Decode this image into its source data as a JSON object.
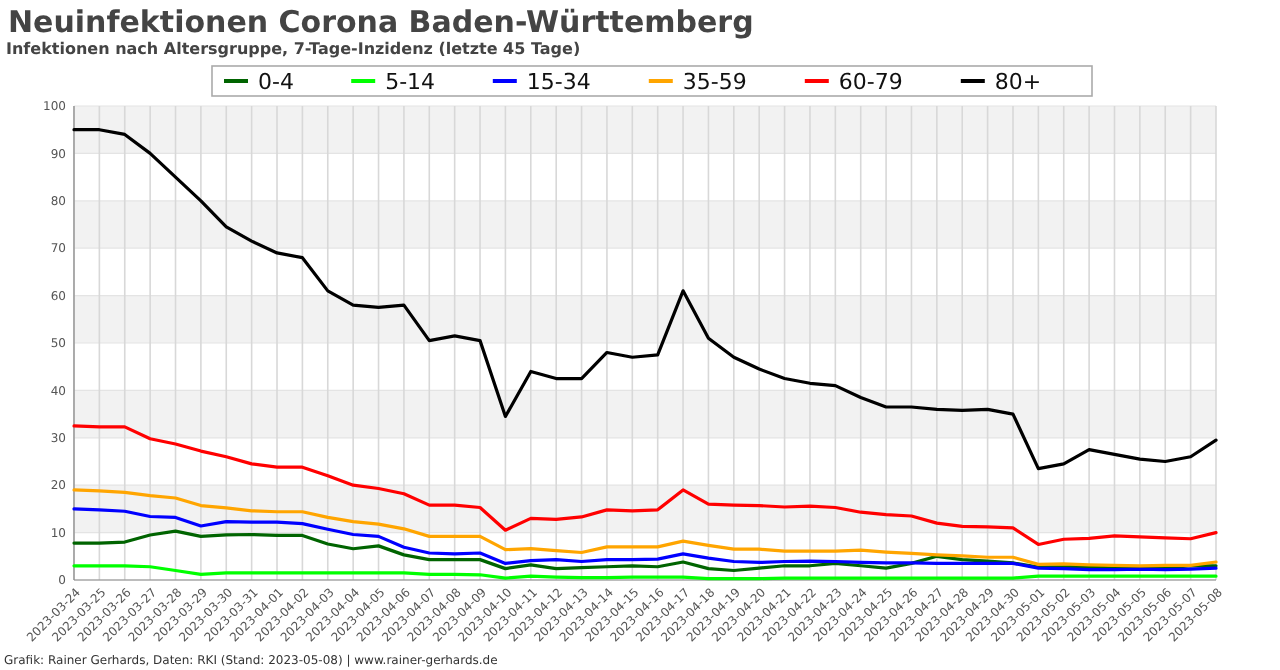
{
  "chart_data": {
    "type": "line",
    "title": "Neuinfektionen Corona Baden-Württemberg",
    "subtitle": "Infektionen nach Altersgruppe, 7-Tage-Inzidenz (letzte 45 Tage)",
    "annotations": [
      "Grafik: Rainer Gerhards, Daten: RKI (Stand: 2023-05-08) | www.rainer-gerhards.de"
    ],
    "categories": [
      "2023-03-24",
      "2023-03-25",
      "2023-03-26",
      "2023-03-27",
      "2023-03-28",
      "2023-03-29",
      "2023-03-30",
      "2023-03-31",
      "2023-04-01",
      "2023-04-02",
      "2023-04-03",
      "2023-04-04",
      "2023-04-05",
      "2023-04-06",
      "2023-04-07",
      "2023-04-08",
      "2023-04-09",
      "2023-04-10",
      "2023-04-11",
      "2023-04-12",
      "2023-04-13",
      "2023-04-14",
      "2023-04-15",
      "2023-04-16",
      "2023-04-17",
      "2023-04-18",
      "2023-04-19",
      "2023-04-20",
      "2023-04-21",
      "2023-04-22",
      "2023-04-23",
      "2023-04-24",
      "2023-04-25",
      "2023-04-26",
      "2023-04-27",
      "2023-04-28",
      "2023-04-29",
      "2023-04-30",
      "2023-05-01",
      "2023-05-02",
      "2023-05-03",
      "2023-05-04",
      "2023-05-05",
      "2023-05-06",
      "2023-05-07",
      "2023-05-08"
    ],
    "series": [
      {
        "name": "0-4",
        "color": "#006400",
        "values": [
          7.8,
          7.8,
          8,
          9.5,
          10.3,
          9.2,
          9.5,
          9.6,
          9.4,
          9.4,
          7.6,
          6.6,
          7.2,
          5.3,
          4.3,
          4.3,
          4.3,
          2.4,
          3.2,
          2.4,
          2.6,
          2.8,
          3,
          2.8,
          3.8,
          2.4,
          2,
          2.5,
          3,
          3,
          3.5,
          3,
          2.5,
          3.5,
          5,
          4.3,
          4,
          3.6,
          2.7,
          2.8,
          2.8,
          2.5,
          2.5,
          2.5,
          3,
          3
        ]
      },
      {
        "name": "5-14",
        "color": "#00ff00",
        "values": [
          3,
          3,
          3,
          2.8,
          2,
          1.2,
          1.5,
          1.5,
          1.5,
          1.5,
          1.5,
          1.5,
          1.5,
          1.5,
          1.2,
          1.2,
          1.1,
          0.4,
          0.8,
          0.6,
          0.5,
          0.5,
          0.6,
          0.6,
          0.6,
          0.3,
          0.3,
          0.3,
          0.4,
          0.4,
          0.4,
          0.4,
          0.4,
          0.4,
          0.4,
          0.4,
          0.4,
          0.4,
          0.8,
          0.8,
          0.8,
          0.8,
          0.8,
          0.8,
          0.8,
          0.8
        ]
      },
      {
        "name": "15-34",
        "color": "#0000ff",
        "values": [
          15,
          14.8,
          14.5,
          13.4,
          13.2,
          11.4,
          12.3,
          12.2,
          12.2,
          11.9,
          10.7,
          9.6,
          9.2,
          6.9,
          5.7,
          5.5,
          5.7,
          3.5,
          4.1,
          4.3,
          3.9,
          4.3,
          4.3,
          4.4,
          5.5,
          4.6,
          3.9,
          3.7,
          3.9,
          4,
          3.9,
          3.7,
          3.6,
          3.6,
          3.5,
          3.5,
          3.5,
          3.5,
          2.5,
          2.4,
          2.2,
          2.2,
          2.3,
          2.2,
          2.3,
          2.5
        ]
      },
      {
        "name": "35-59",
        "color": "#ffa500",
        "values": [
          19,
          18.8,
          18.5,
          17.8,
          17.3,
          15.7,
          15.2,
          14.6,
          14.4,
          14.4,
          13.2,
          12.3,
          11.8,
          10.8,
          9.2,
          9.2,
          9.2,
          6.4,
          6.6,
          6.2,
          5.8,
          7,
          7,
          7,
          8.2,
          7.3,
          6.5,
          6.5,
          6.1,
          6.1,
          6.1,
          6.3,
          5.9,
          5.6,
          5.3,
          5.1,
          4.8,
          4.8,
          3.3,
          3.4,
          3.2,
          3.1,
          3,
          3.1,
          3.1,
          3.8
        ]
      },
      {
        "name": "60-79",
        "color": "#ff0000",
        "values": [
          32.5,
          32.3,
          32.3,
          29.8,
          28.7,
          27.2,
          26,
          24.5,
          23.8,
          23.8,
          22,
          20,
          19.3,
          18.2,
          15.8,
          15.8,
          15.3,
          10.5,
          13,
          12.8,
          13.3,
          14.8,
          14.6,
          14.8,
          19,
          16,
          15.8,
          15.7,
          15.4,
          15.6,
          15.3,
          14.3,
          13.8,
          13.5,
          12,
          11.3,
          11.2,
          11,
          7.5,
          8.6,
          8.8,
          9.3,
          9.1,
          8.9,
          8.7,
          10
        ]
      },
      {
        "name": "80+",
        "color": "#000000",
        "values": [
          95,
          95,
          94,
          90,
          85,
          80,
          74.5,
          71.5,
          69,
          68,
          61,
          58,
          57.5,
          58,
          50.5,
          51.5,
          50.5,
          34.5,
          44,
          42.5,
          42.5,
          48,
          47,
          47.5,
          61,
          51,
          47,
          44.5,
          42.5,
          41.5,
          41,
          38.5,
          36.5,
          36.5,
          36,
          35.8,
          36,
          35,
          23.5,
          24.5,
          27.5,
          26.5,
          25.5,
          25,
          26,
          29.5
        ]
      }
    ],
    "ylim": [
      0,
      100
    ],
    "yticks": [
      0,
      10,
      20,
      30,
      40,
      50,
      60,
      70,
      80,
      90,
      100
    ],
    "grid": true,
    "legend": "top",
    "marker": "none",
    "line_style": "solid"
  }
}
